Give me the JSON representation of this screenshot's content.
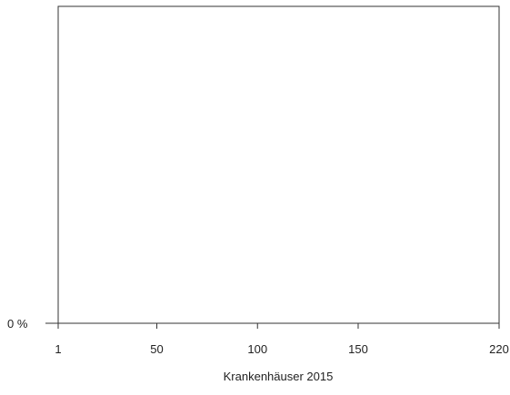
{
  "chart_data": {
    "type": "bar",
    "title": "",
    "xlabel": "Krankenhäuser 2015",
    "ylabel": "",
    "x_ticks": [
      1,
      50,
      100,
      150,
      220
    ],
    "xlim": [
      1,
      220
    ],
    "y_ticks": [
      {
        "value": 0,
        "label": "0 %"
      }
    ],
    "values": [],
    "grid": false,
    "legend": "none"
  }
}
